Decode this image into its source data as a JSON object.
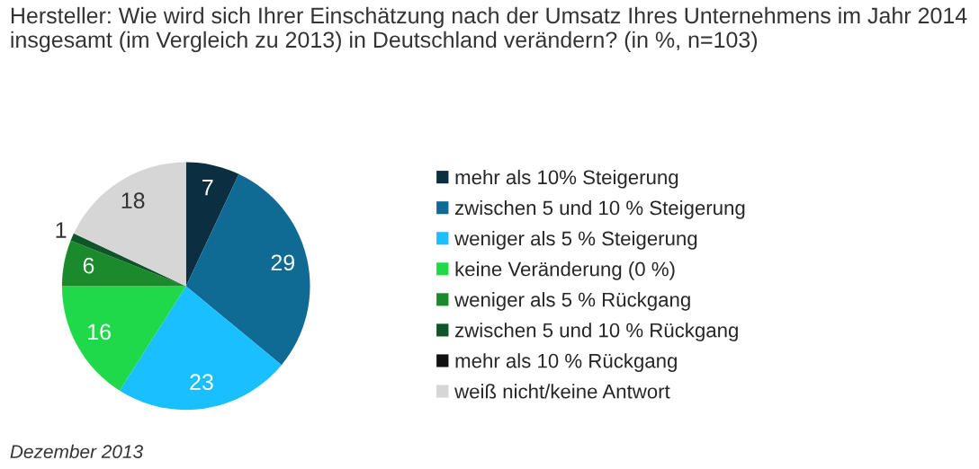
{
  "chart_data": {
    "type": "pie",
    "title": "Hersteller: Wie wird sich Ihrer Einschätzung nach der Umsatz Ihres Unternehmens im Jahr 2014 insgesamt (im Vergleich zu 2013) in Deutschland verändern? (in %, n=103)",
    "categories": [
      "mehr als 10% Steigerung",
      "zwischen 5 und 10 % Steigerung",
      "weniger als 5 % Steigerung",
      "keine Veränderung (0 %)",
      "weniger als 5 % Rückgang",
      "zwischen 5 und 10 % Rückgang",
      "mehr als 10 % Rückgang",
      "weiß nicht/keine Antwort"
    ],
    "values": [
      7,
      29,
      23,
      16,
      6,
      1,
      0,
      18
    ],
    "value_labels": [
      "7",
      "29",
      "23",
      "16",
      "6",
      "1",
      null,
      "18"
    ],
    "colors": [
      "#0b2f40",
      "#0f6b93",
      "#19bfff",
      "#1fd94a",
      "#1b8a2c",
      "#0f5527",
      "#111111",
      "#d6d6d6"
    ],
    "legend": "right",
    "annotations": [
      "Dezember 2013"
    ]
  }
}
